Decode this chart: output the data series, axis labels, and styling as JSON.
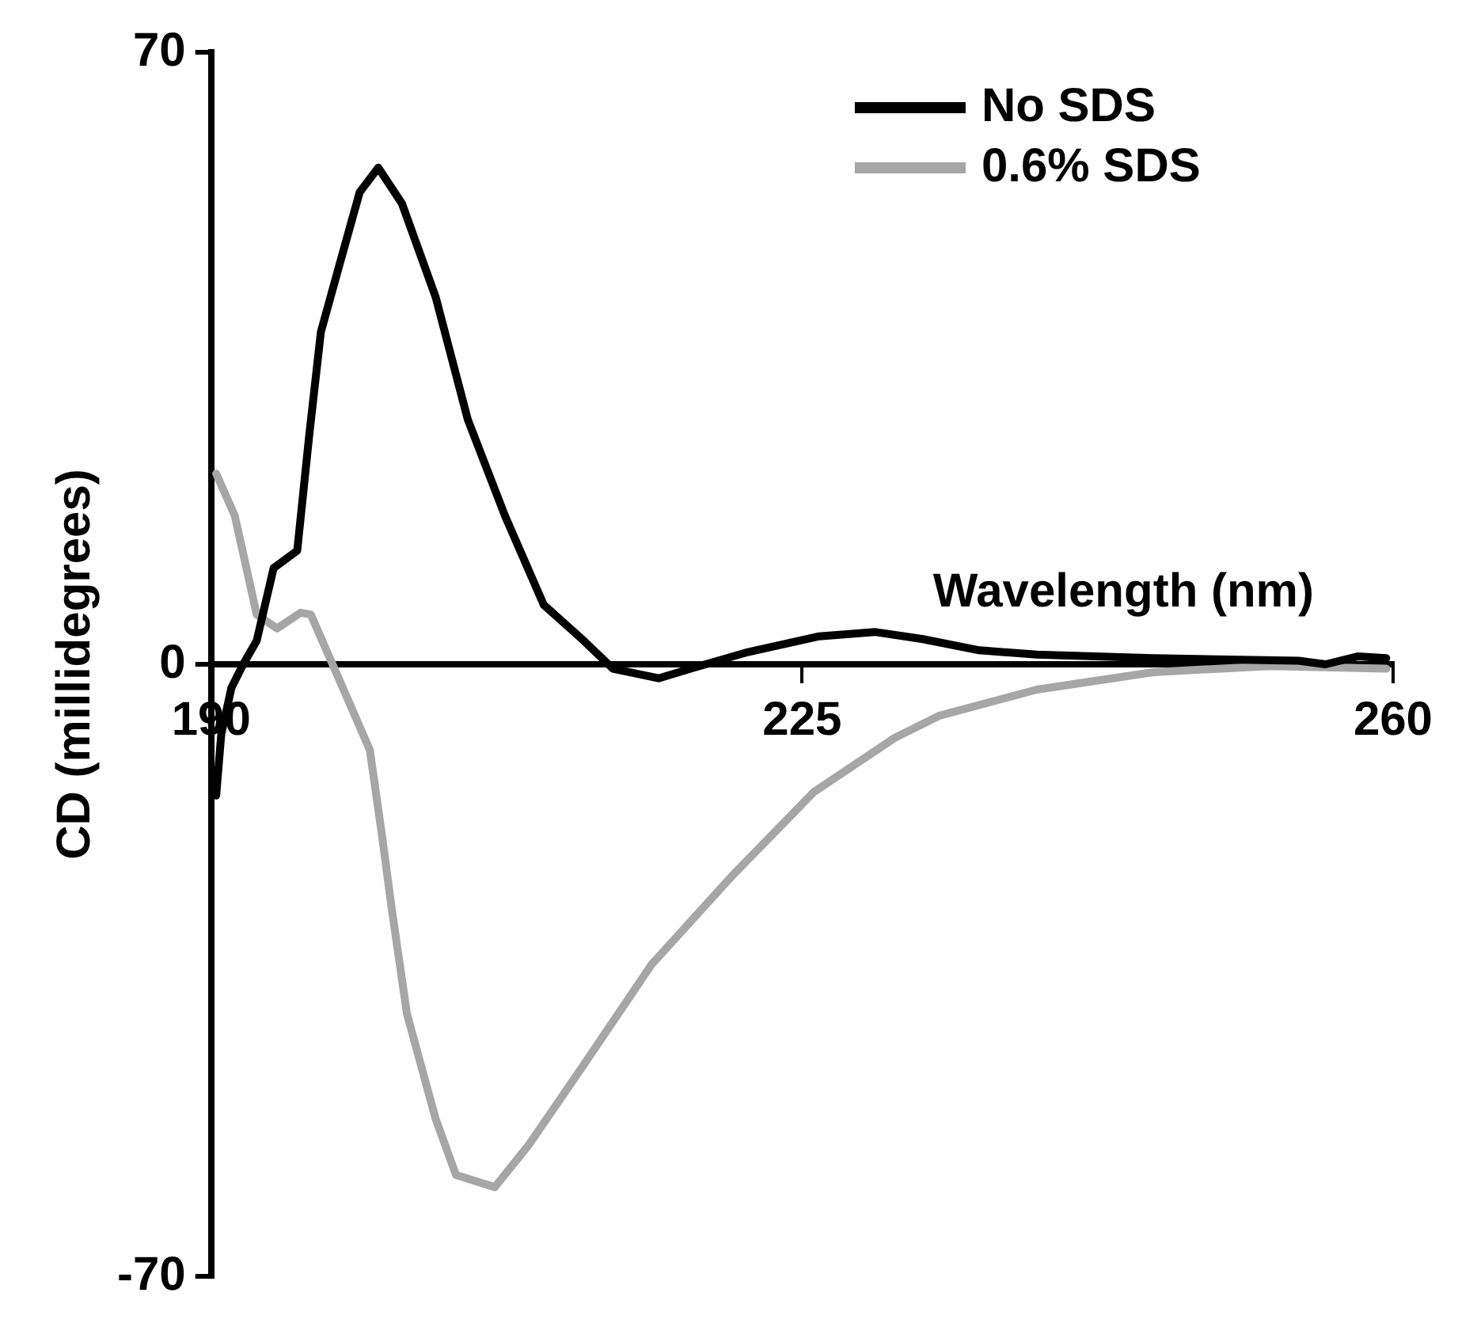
{
  "chart_data": {
    "type": "line",
    "xlabel": "Wavelength (nm)",
    "ylabel": "CD (millidegrees)",
    "xlim": [
      190,
      260
    ],
    "xticks": [
      190,
      225,
      260
    ],
    "ylim": [
      -70,
      70
    ],
    "yticks": [
      70,
      0,
      -70
    ],
    "grid": false,
    "legend": "top right",
    "marker": "none",
    "line_style": "solid",
    "series": [
      {
        "name": "No SDS",
        "color": "#000000",
        "x": [
          190.3,
          190.6,
          191.2,
          191.9,
          192.7,
          193.7,
          195.1,
          195.8,
          196.5,
          197.5,
          198.8,
          199.9,
          201.3,
          203.3,
          205.2,
          207.4,
          209.7,
          211.9,
          213.8,
          216.5,
          218.4,
          221.8,
          226,
          229.3,
          232.1,
          235.5,
          238.9,
          245.8,
          254.4,
          256,
          257.9,
          259.6
        ],
        "values": [
          -15,
          -8,
          -2.7,
          0,
          2.7,
          11,
          13,
          26,
          38,
          45,
          54,
          56.8,
          52.7,
          42,
          28,
          17,
          6.8,
          3,
          -0.5,
          -1.6,
          -0.5,
          1.4,
          3.2,
          3.7,
          2.9,
          1.6,
          1.1,
          0.7,
          0.4,
          0,
          0.9,
          0.7
        ]
      },
      {
        "name": "0.6% SDS",
        "color": "#a6a6a6",
        "x": [
          190.3,
          191.4,
          192.7,
          193.9,
          195.3,
          195.9,
          197.8,
          199.4,
          200.1,
          200.7,
          201.6,
          203.3,
          204.5,
          206.8,
          208.8,
          212,
          216.1,
          220.9,
          225.7,
          230.5,
          233.1,
          238.9,
          245.8,
          252.7,
          259.6
        ],
        "values": [
          21.8,
          17,
          5.7,
          4.1,
          5.9,
          5.7,
          -2.7,
          -9.8,
          -19.3,
          -28,
          -40,
          -52,
          -58.4,
          -59.8,
          -55,
          -46,
          -34.3,
          -24.1,
          -14.6,
          -8.4,
          -5.9,
          -2.9,
          -0.9,
          -0.2,
          -0.5
        ]
      }
    ]
  }
}
